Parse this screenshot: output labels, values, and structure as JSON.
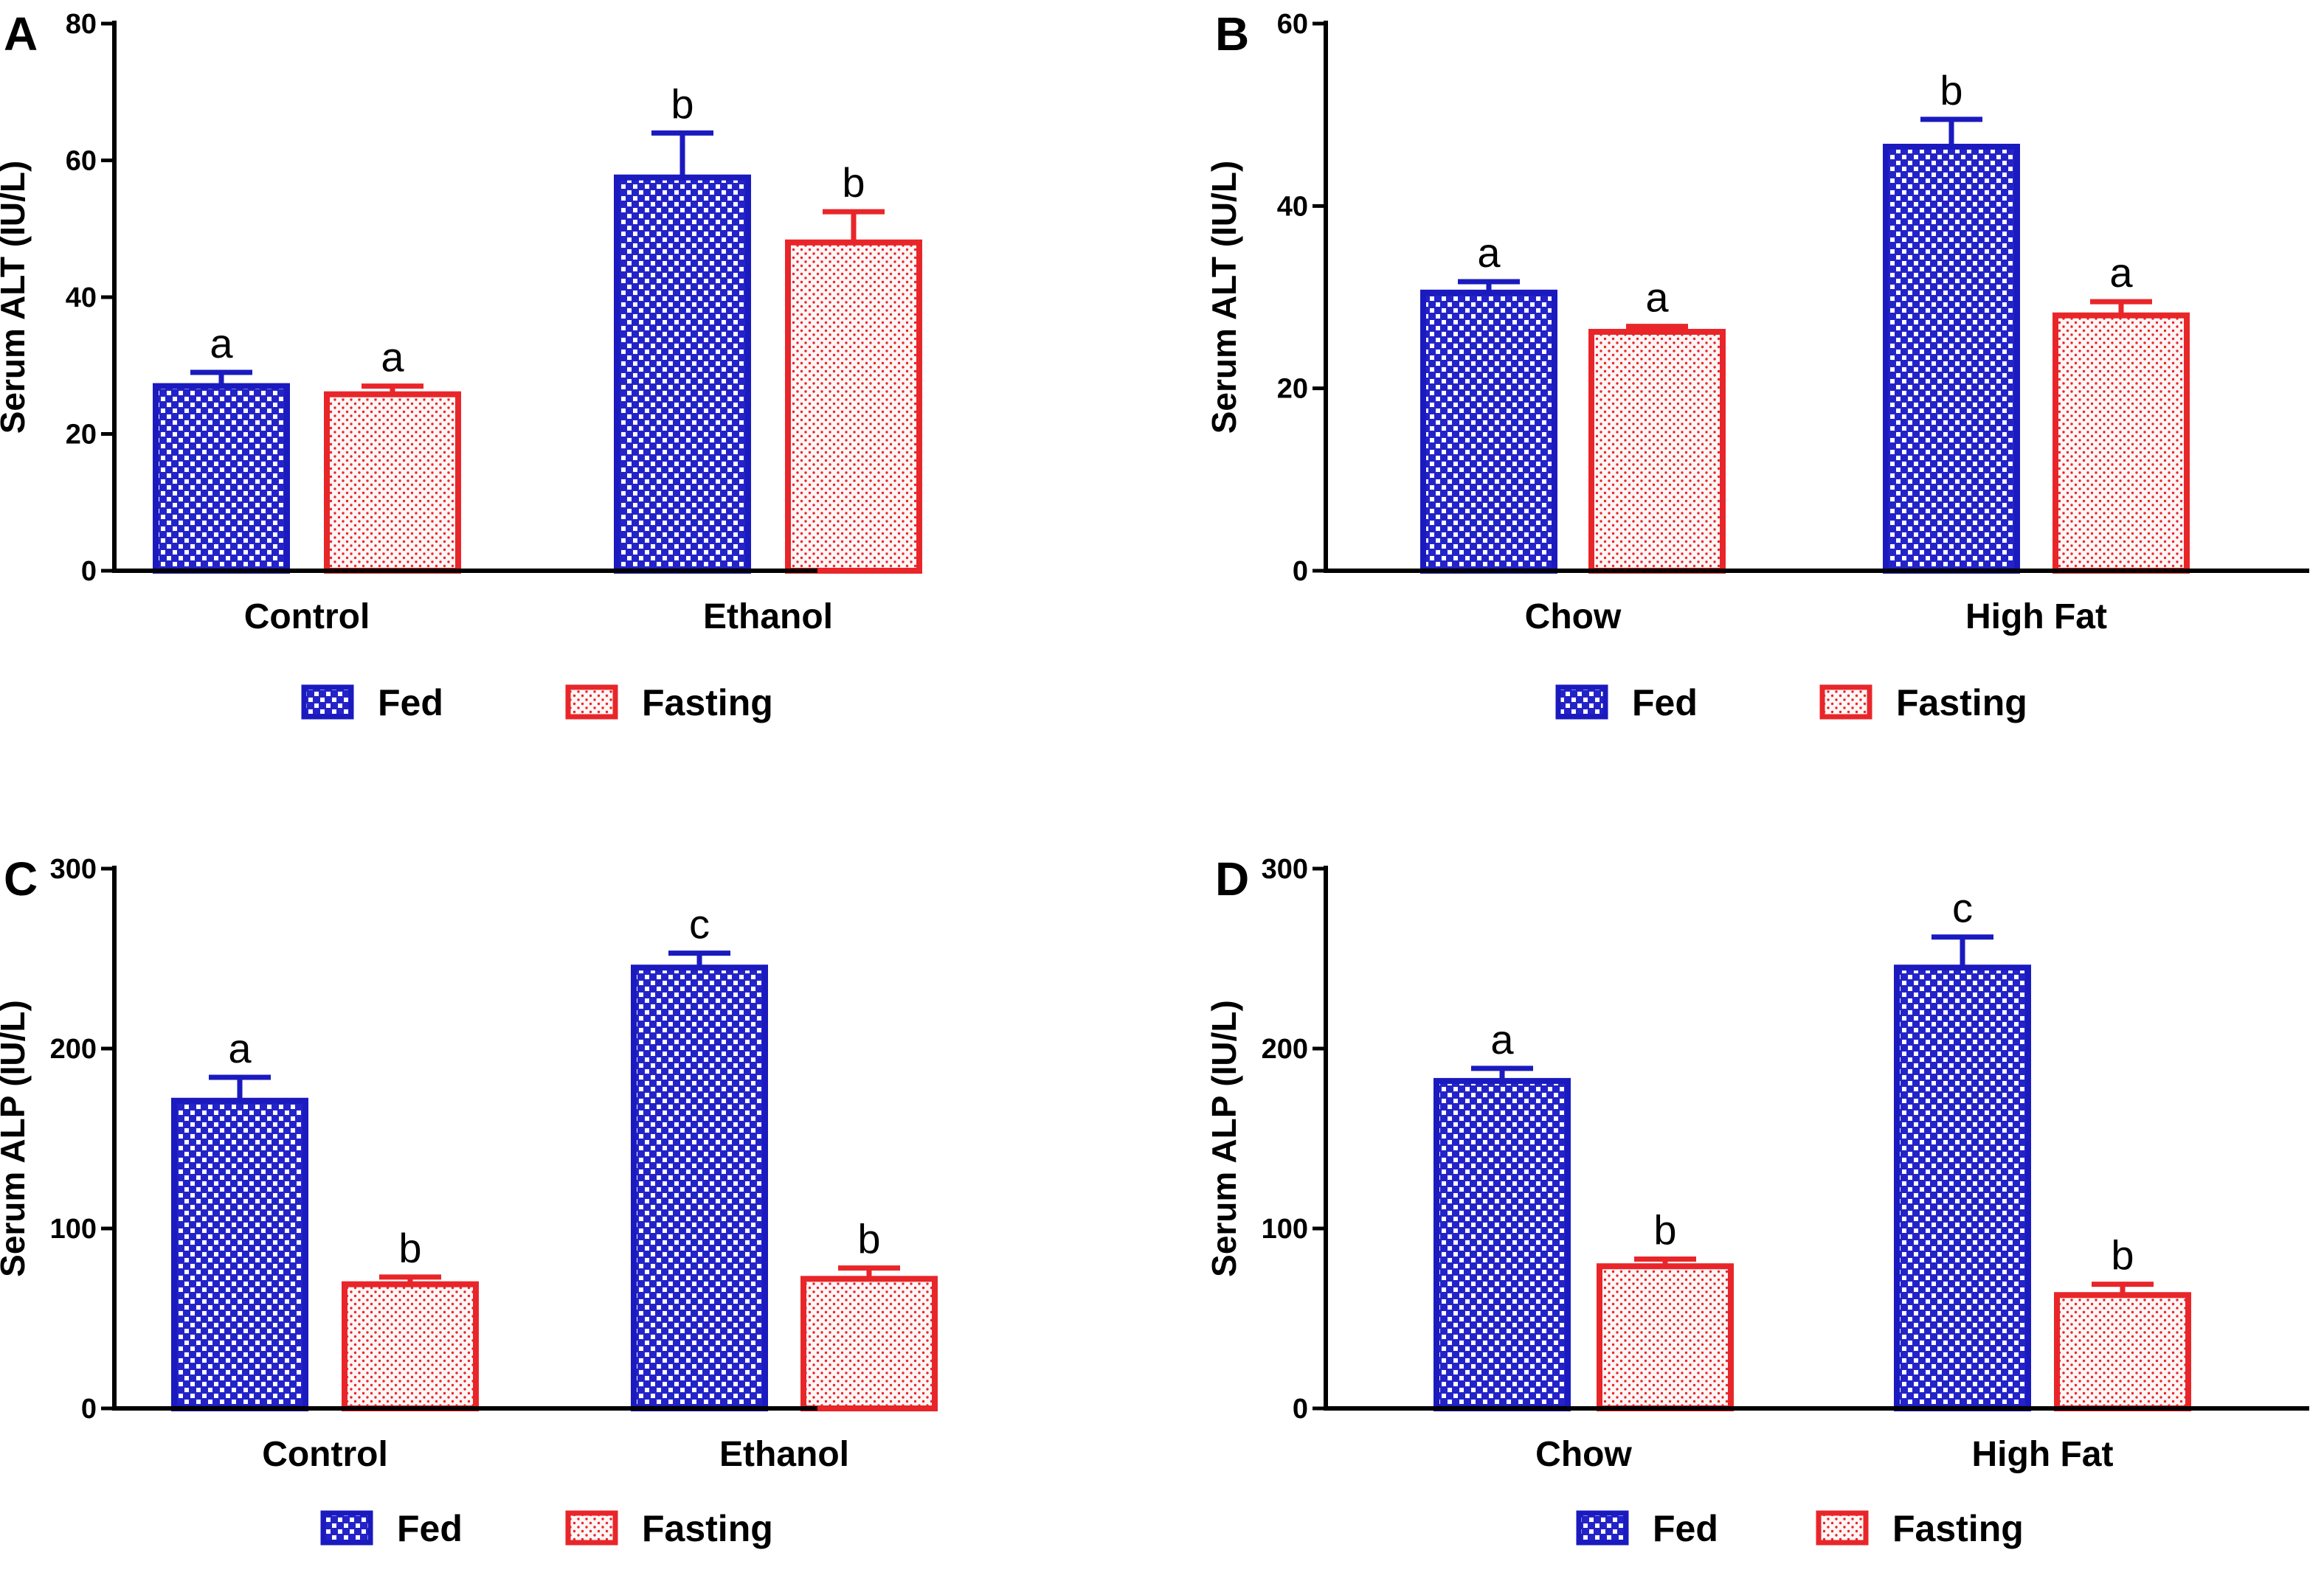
{
  "series_style": {
    "fed": {
      "stroke": "#1a1abf",
      "fill": "#2323c8"
    },
    "fasting": {
      "stroke": "#e8262a",
      "fill": "#e8262a"
    }
  },
  "chart_data": [
    {
      "panel": "A",
      "type": "bar",
      "ylabel": "Serum ALT (IU/L)",
      "ylim": [
        0,
        80
      ],
      "yticks": [
        "0",
        "20",
        "40",
        "60",
        "80"
      ],
      "categories": [
        "Control",
        "Ethanol"
      ],
      "series": [
        {
          "name": "Fed",
          "values": [
            27,
            57.5
          ],
          "errors": [
            2,
            6.5
          ],
          "letters": [
            "a",
            "b"
          ]
        },
        {
          "name": "Fasting",
          "values": [
            25.8,
            48
          ],
          "errors": [
            1.2,
            4.5
          ],
          "letters": [
            "a",
            "b"
          ]
        }
      ],
      "legend": [
        "Fed",
        "Fasting"
      ],
      "legend_position": "bottom"
    },
    {
      "panel": "B",
      "type": "bar",
      "ylabel": "Serum ALT (IU/L)",
      "ylim": [
        0,
        60
      ],
      "yticks": [
        "0",
        "20",
        "40",
        "60"
      ],
      "categories": [
        "Chow",
        "High Fat"
      ],
      "series": [
        {
          "name": "Fed",
          "values": [
            30.5,
            46.5
          ],
          "errors": [
            1.2,
            3
          ],
          "letters": [
            "a",
            "b"
          ]
        },
        {
          "name": "Fasting",
          "values": [
            26.2,
            28
          ],
          "errors": [
            0.6,
            1.5
          ],
          "letters": [
            "a",
            "a"
          ]
        }
      ],
      "legend": [
        "Fed",
        "Fasting"
      ],
      "legend_position": "bottom"
    },
    {
      "panel": "C",
      "type": "bar",
      "ylabel": "Serum ALP (IU/L)",
      "ylim": [
        0,
        300
      ],
      "yticks": [
        "0",
        "100",
        "200",
        "300"
      ],
      "categories": [
        "Control",
        "Ethanol"
      ],
      "series": [
        {
          "name": "Fed",
          "values": [
            171,
            245
          ],
          "errors": [
            13,
            8
          ],
          "letters": [
            "a",
            "c"
          ]
        },
        {
          "name": "Fasting",
          "values": [
            69,
            72
          ],
          "errors": [
            4,
            6
          ],
          "letters": [
            "b",
            "b"
          ]
        }
      ],
      "legend": [
        "Fed",
        "Fasting"
      ],
      "legend_position": "bottom"
    },
    {
      "panel": "D",
      "type": "bar",
      "ylabel": "Serum ALP (IU/L)",
      "ylim": [
        0,
        300
      ],
      "yticks": [
        "0",
        "100",
        "200",
        "300"
      ],
      "categories": [
        "Chow",
        "High Fat"
      ],
      "series": [
        {
          "name": "Fed",
          "values": [
            182,
            245
          ],
          "errors": [
            7,
            17
          ],
          "letters": [
            "a",
            "c"
          ]
        },
        {
          "name": "Fasting",
          "values": [
            79,
            63
          ],
          "errors": [
            4,
            6
          ],
          "letters": [
            "b",
            "b"
          ]
        }
      ],
      "legend": [
        "Fed",
        "Fasting"
      ],
      "legend_position": "bottom"
    }
  ]
}
